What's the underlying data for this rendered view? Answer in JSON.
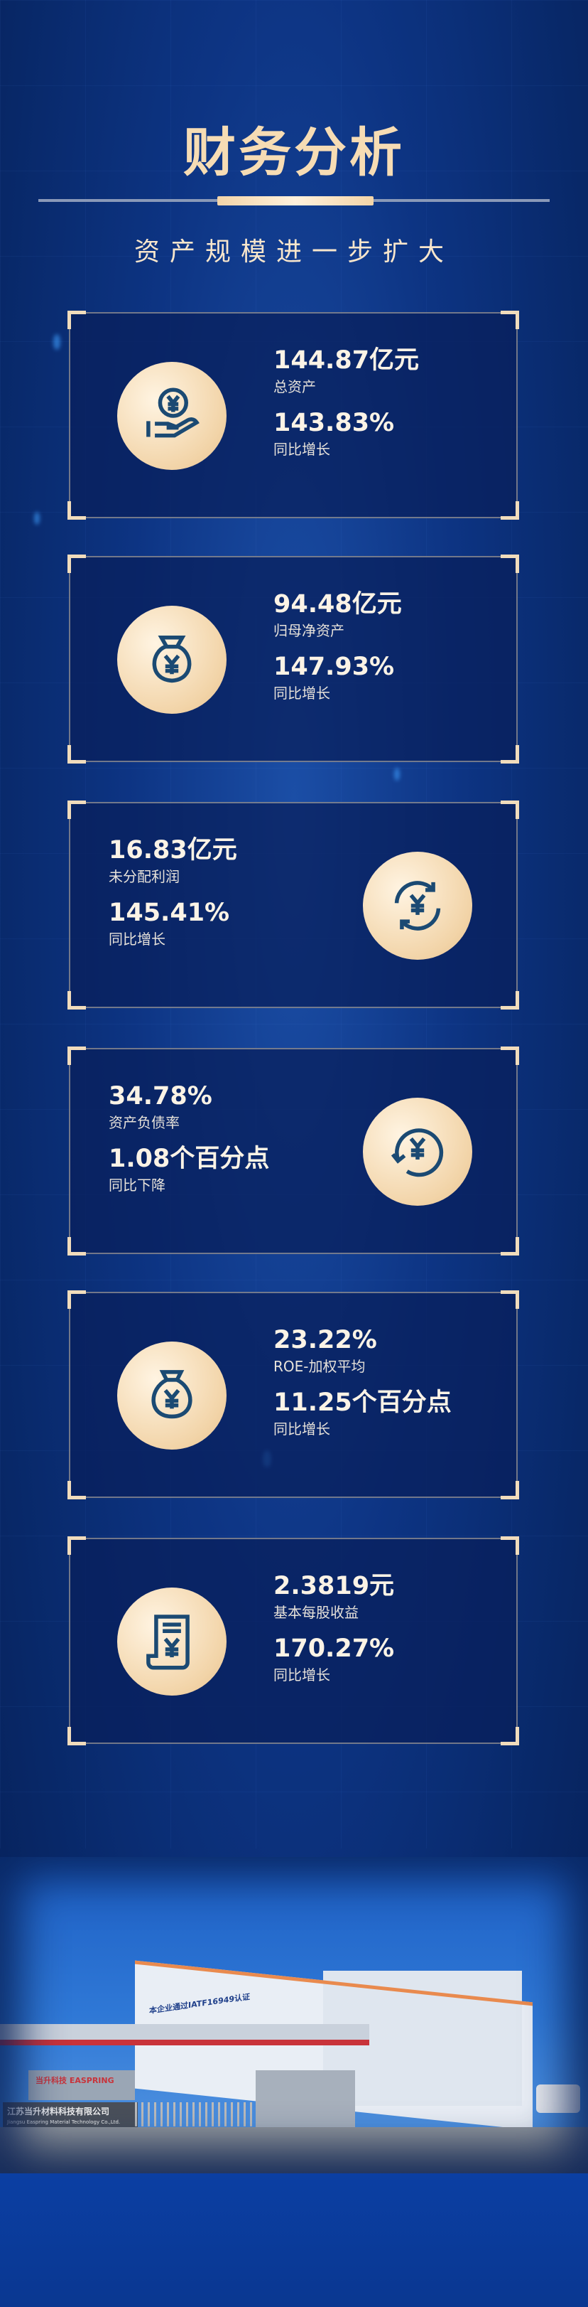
{
  "header": {
    "title": "财务分析",
    "subtitle": "资产规模进一步扩大"
  },
  "colors": {
    "accent": "#f6dcb4",
    "background": "#0d3483",
    "icon_stroke": "#1b4a73"
  },
  "cards": [
    {
      "value": "144.87亿元",
      "label": "总资产",
      "change": "143.83%",
      "change_label": "同比增长",
      "icon": "hand-coin-yuan-icon"
    },
    {
      "value": "94.48亿元",
      "label": "归母净资产",
      "change": "147.93%",
      "change_label": "同比增长",
      "icon": "money-bag-yuan-icon"
    },
    {
      "value": "16.83亿元",
      "label": "未分配利润",
      "change": "145.41%",
      "change_label": "同比增长",
      "icon": "yuan-cycle-icon"
    },
    {
      "value": "34.78%",
      "label": "资产负债率",
      "change": "1.08个百分点",
      "change_label": "同比下降",
      "icon": "yuan-refresh-icon"
    },
    {
      "value": "23.22%",
      "label": "ROE-加权平均",
      "change": "11.25个百分点",
      "change_label": "同比增长",
      "icon": "yuan-sack-icon"
    },
    {
      "value": "2.3819元",
      "label": "基本每股收益",
      "change": "170.27%",
      "change_label": "同比增长",
      "icon": "yuan-receipt-icon"
    }
  ],
  "photo": {
    "building_banner": "本企业通过IATF16949认证",
    "sign_brand": "当升科技 EASPRING",
    "sign_company": "江苏当升材料科技有限公司",
    "sign_company_en": "Jiangsu Easpring Material Technology Co.,Ltd."
  }
}
